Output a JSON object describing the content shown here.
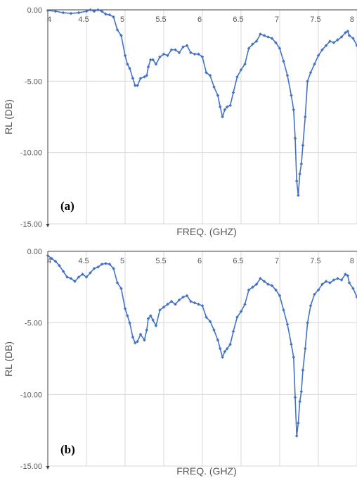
{
  "colors": {
    "series": "#4472c4",
    "grid": "#d9d9d9",
    "axis": "#404040",
    "text": "#595959"
  },
  "chart_data": [
    {
      "type": "line",
      "panel_label": "(a)",
      "xlabel": "FREQ. (GHZ)",
      "ylabel": "RL (DB)",
      "xlim": [
        4,
        8
      ],
      "ylim": [
        -15,
        0
      ],
      "x_ticks": [
        "4",
        "4.5",
        "5",
        "5.5",
        "6",
        "6.5",
        "7",
        "7.5",
        "8"
      ],
      "y_ticks": [
        "0.00",
        "-5.00",
        "-10.00",
        "-15.00"
      ],
      "x_tick_values": [
        4,
        4.5,
        5,
        5.5,
        6,
        6.5,
        7,
        7.5,
        8
      ],
      "y_tick_values": [
        0,
        -5,
        -10,
        -15
      ],
      "grid": true,
      "markers": "diamond",
      "points": [
        [
          4.0,
          -0.05
        ],
        [
          4.1,
          -0.1
        ],
        [
          4.2,
          -0.2
        ],
        [
          4.3,
          -0.25
        ],
        [
          4.4,
          -0.2
        ],
        [
          4.5,
          -0.1
        ],
        [
          4.55,
          0.0
        ],
        [
          4.6,
          -0.1
        ],
        [
          4.65,
          0.0
        ],
        [
          4.7,
          -0.1
        ],
        [
          4.75,
          -0.3
        ],
        [
          4.8,
          -0.35
        ],
        [
          4.85,
          -0.5
        ],
        [
          4.9,
          -1.4
        ],
        [
          4.95,
          -1.8
        ],
        [
          5.0,
          -3.2
        ],
        [
          5.03,
          -3.8
        ],
        [
          5.06,
          -4.1
        ],
        [
          5.1,
          -4.8
        ],
        [
          5.13,
          -5.3
        ],
        [
          5.16,
          -5.3
        ],
        [
          5.2,
          -4.8
        ],
        [
          5.25,
          -4.7
        ],
        [
          5.28,
          -4.6
        ],
        [
          5.3,
          -4.0
        ],
        [
          5.33,
          -3.5
        ],
        [
          5.36,
          -3.5
        ],
        [
          5.4,
          -3.8
        ],
        [
          5.45,
          -3.3
        ],
        [
          5.5,
          -3.1
        ],
        [
          5.55,
          -3.2
        ],
        [
          5.6,
          -2.8
        ],
        [
          5.65,
          -2.8
        ],
        [
          5.7,
          -3.0
        ],
        [
          5.75,
          -2.6
        ],
        [
          5.8,
          -2.5
        ],
        [
          5.85,
          -3.0
        ],
        [
          5.9,
          -3.1
        ],
        [
          5.95,
          -3.1
        ],
        [
          6.0,
          -3.3
        ],
        [
          6.05,
          -4.4
        ],
        [
          6.1,
          -4.6
        ],
        [
          6.15,
          -5.4
        ],
        [
          6.2,
          -6.0
        ],
        [
          6.23,
          -6.8
        ],
        [
          6.26,
          -7.5
        ],
        [
          6.29,
          -7.0
        ],
        [
          6.32,
          -6.8
        ],
        [
          6.36,
          -6.7
        ],
        [
          6.4,
          -5.8
        ],
        [
          6.45,
          -4.7
        ],
        [
          6.5,
          -4.2
        ],
        [
          6.55,
          -3.8
        ],
        [
          6.6,
          -2.7
        ],
        [
          6.65,
          -2.4
        ],
        [
          6.7,
          -2.2
        ],
        [
          6.75,
          -1.7
        ],
        [
          6.8,
          -1.8
        ],
        [
          6.85,
          -1.9
        ],
        [
          6.9,
          -2.0
        ],
        [
          6.95,
          -2.3
        ],
        [
          7.0,
          -2.7
        ],
        [
          7.05,
          -3.6
        ],
        [
          7.1,
          -4.6
        ],
        [
          7.15,
          -6.0
        ],
        [
          7.18,
          -7.0
        ],
        [
          7.2,
          -9.0
        ],
        [
          7.22,
          -12.0
        ],
        [
          7.24,
          -13.0
        ],
        [
          7.26,
          -11.5
        ],
        [
          7.28,
          -10.8
        ],
        [
          7.3,
          -9.5
        ],
        [
          7.33,
          -7.5
        ],
        [
          7.36,
          -5.0
        ],
        [
          7.4,
          -4.4
        ],
        [
          7.45,
          -3.8
        ],
        [
          7.5,
          -3.2
        ],
        [
          7.55,
          -2.8
        ],
        [
          7.6,
          -2.5
        ],
        [
          7.65,
          -2.2
        ],
        [
          7.7,
          -2.3
        ],
        [
          7.75,
          -2.1
        ],
        [
          7.8,
          -1.9
        ],
        [
          7.85,
          -1.6
        ],
        [
          7.88,
          -1.5
        ],
        [
          7.9,
          -1.8
        ],
        [
          7.95,
          -2.0
        ],
        [
          8.0,
          -2.5
        ]
      ]
    },
    {
      "type": "line",
      "panel_label": "(b)",
      "xlabel": "FREQ. (GHZ)",
      "ylabel": "RL (DB)",
      "xlim": [
        4,
        8
      ],
      "ylim": [
        -15,
        0
      ],
      "x_ticks": [
        "4",
        "4.5",
        "5",
        "5.5",
        "6",
        "6.5",
        "7",
        "7.5",
        "8"
      ],
      "y_ticks": [
        "0.00",
        "-5.00",
        "-10.00",
        "-15.00"
      ],
      "x_tick_values": [
        4,
        4.5,
        5,
        5.5,
        6,
        6.5,
        7,
        7.5,
        8
      ],
      "y_tick_values": [
        0,
        -5,
        -10,
        -15
      ],
      "grid": true,
      "markers": "diamond",
      "points": [
        [
          4.0,
          -0.3
        ],
        [
          4.05,
          -0.5
        ],
        [
          4.1,
          -0.7
        ],
        [
          4.15,
          -1.0
        ],
        [
          4.2,
          -1.4
        ],
        [
          4.25,
          -1.8
        ],
        [
          4.3,
          -1.9
        ],
        [
          4.35,
          -2.1
        ],
        [
          4.4,
          -1.8
        ],
        [
          4.45,
          -1.6
        ],
        [
          4.5,
          -1.8
        ],
        [
          4.55,
          -1.5
        ],
        [
          4.6,
          -1.2
        ],
        [
          4.65,
          -1.1
        ],
        [
          4.7,
          -0.9
        ],
        [
          4.75,
          -0.85
        ],
        [
          4.8,
          -0.9
        ],
        [
          4.85,
          -1.2
        ],
        [
          4.9,
          -2.2
        ],
        [
          4.95,
          -2.6
        ],
        [
          5.0,
          -4.0
        ],
        [
          5.03,
          -4.5
        ],
        [
          5.06,
          -5.0
        ],
        [
          5.1,
          -6.0
        ],
        [
          5.13,
          -6.4
        ],
        [
          5.16,
          -6.3
        ],
        [
          5.2,
          -5.8
        ],
        [
          5.25,
          -6.2
        ],
        [
          5.28,
          -5.5
        ],
        [
          5.3,
          -4.7
        ],
        [
          5.33,
          -4.5
        ],
        [
          5.36,
          -4.8
        ],
        [
          5.4,
          -5.2
        ],
        [
          5.45,
          -4.1
        ],
        [
          5.5,
          -3.9
        ],
        [
          5.55,
          -3.7
        ],
        [
          5.6,
          -3.5
        ],
        [
          5.65,
          -3.7
        ],
        [
          5.7,
          -3.4
        ],
        [
          5.75,
          -3.2
        ],
        [
          5.8,
          -3.1
        ],
        [
          5.85,
          -3.5
        ],
        [
          5.9,
          -3.6
        ],
        [
          5.95,
          -3.7
        ],
        [
          6.0,
          -3.8
        ],
        [
          6.05,
          -4.6
        ],
        [
          6.1,
          -4.9
        ],
        [
          6.15,
          -5.5
        ],
        [
          6.2,
          -6.2
        ],
        [
          6.23,
          -6.8
        ],
        [
          6.26,
          -7.4
        ],
        [
          6.29,
          -7.0
        ],
        [
          6.32,
          -6.8
        ],
        [
          6.36,
          -6.5
        ],
        [
          6.4,
          -5.6
        ],
        [
          6.45,
          -4.6
        ],
        [
          6.5,
          -4.2
        ],
        [
          6.55,
          -3.7
        ],
        [
          6.6,
          -2.7
        ],
        [
          6.65,
          -2.5
        ],
        [
          6.7,
          -2.3
        ],
        [
          6.75,
          -1.9
        ],
        [
          6.8,
          -2.1
        ],
        [
          6.85,
          -2.3
        ],
        [
          6.9,
          -2.4
        ],
        [
          6.95,
          -2.7
        ],
        [
          7.0,
          -3.1
        ],
        [
          7.05,
          -4.1
        ],
        [
          7.1,
          -5.1
        ],
        [
          7.15,
          -6.5
        ],
        [
          7.18,
          -7.4
        ],
        [
          7.2,
          -10.2
        ],
        [
          7.22,
          -12.9
        ],
        [
          7.24,
          -12.0
        ],
        [
          7.26,
          -10.5
        ],
        [
          7.28,
          -9.8
        ],
        [
          7.3,
          -8.3
        ],
        [
          7.33,
          -6.8
        ],
        [
          7.36,
          -5.0
        ],
        [
          7.4,
          -3.8
        ],
        [
          7.45,
          -3.0
        ],
        [
          7.5,
          -2.7
        ],
        [
          7.55,
          -2.3
        ],
        [
          7.6,
          -2.1
        ],
        [
          7.65,
          -2.2
        ],
        [
          7.7,
          -2.0
        ],
        [
          7.75,
          -1.9
        ],
        [
          7.8,
          -2.0
        ],
        [
          7.85,
          -1.6
        ],
        [
          7.88,
          -1.7
        ],
        [
          7.9,
          -2.2
        ],
        [
          7.95,
          -2.6
        ],
        [
          8.0,
          -3.2
        ]
      ]
    }
  ]
}
